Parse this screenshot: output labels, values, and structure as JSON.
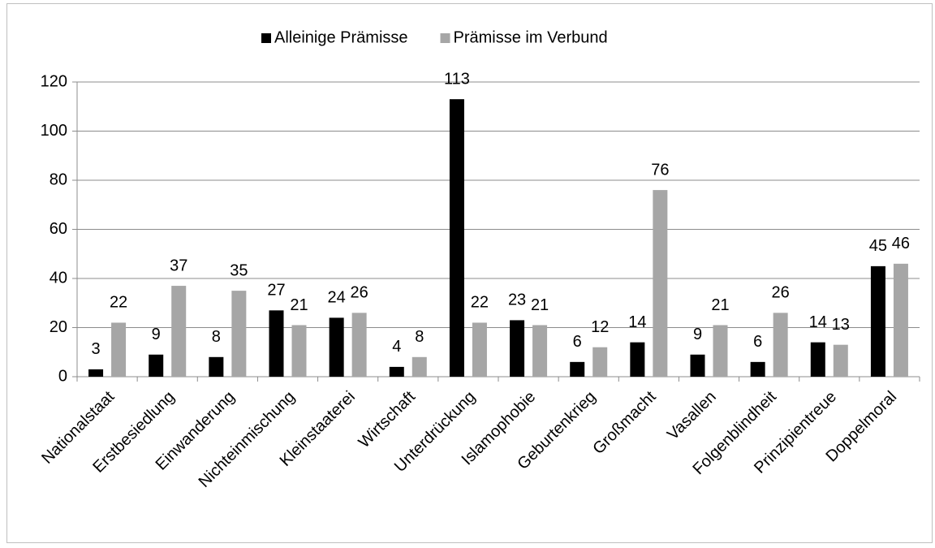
{
  "chart_data": {
    "type": "bar",
    "categories": [
      "Nationalstaat",
      "Erstbesiedlung",
      "Einwanderung",
      "Nichteinmischung",
      "Kleinstaaterei",
      "Wirtschaft",
      "Unterdrückung",
      "Islamophobie",
      "Geburtenkrieg",
      "Großmacht",
      "Vasallen",
      "Folgenblindheit",
      "Prinzipientreue",
      "Doppelmoral"
    ],
    "series": [
      {
        "name": "Alleinige Prämisse",
        "color": "#000000",
        "values": [
          3,
          9,
          8,
          27,
          24,
          4,
          113,
          23,
          6,
          14,
          9,
          6,
          14,
          45
        ]
      },
      {
        "name": "Prämisse im Verbund",
        "color": "#a6a6a6",
        "values": [
          22,
          37,
          35,
          21,
          26,
          8,
          22,
          21,
          12,
          76,
          21,
          26,
          13,
          46
        ]
      }
    ],
    "ylim": [
      0,
      120
    ],
    "yticks": [
      0,
      20,
      40,
      60,
      80,
      100,
      120
    ],
    "grid": true,
    "legend": "top"
  }
}
